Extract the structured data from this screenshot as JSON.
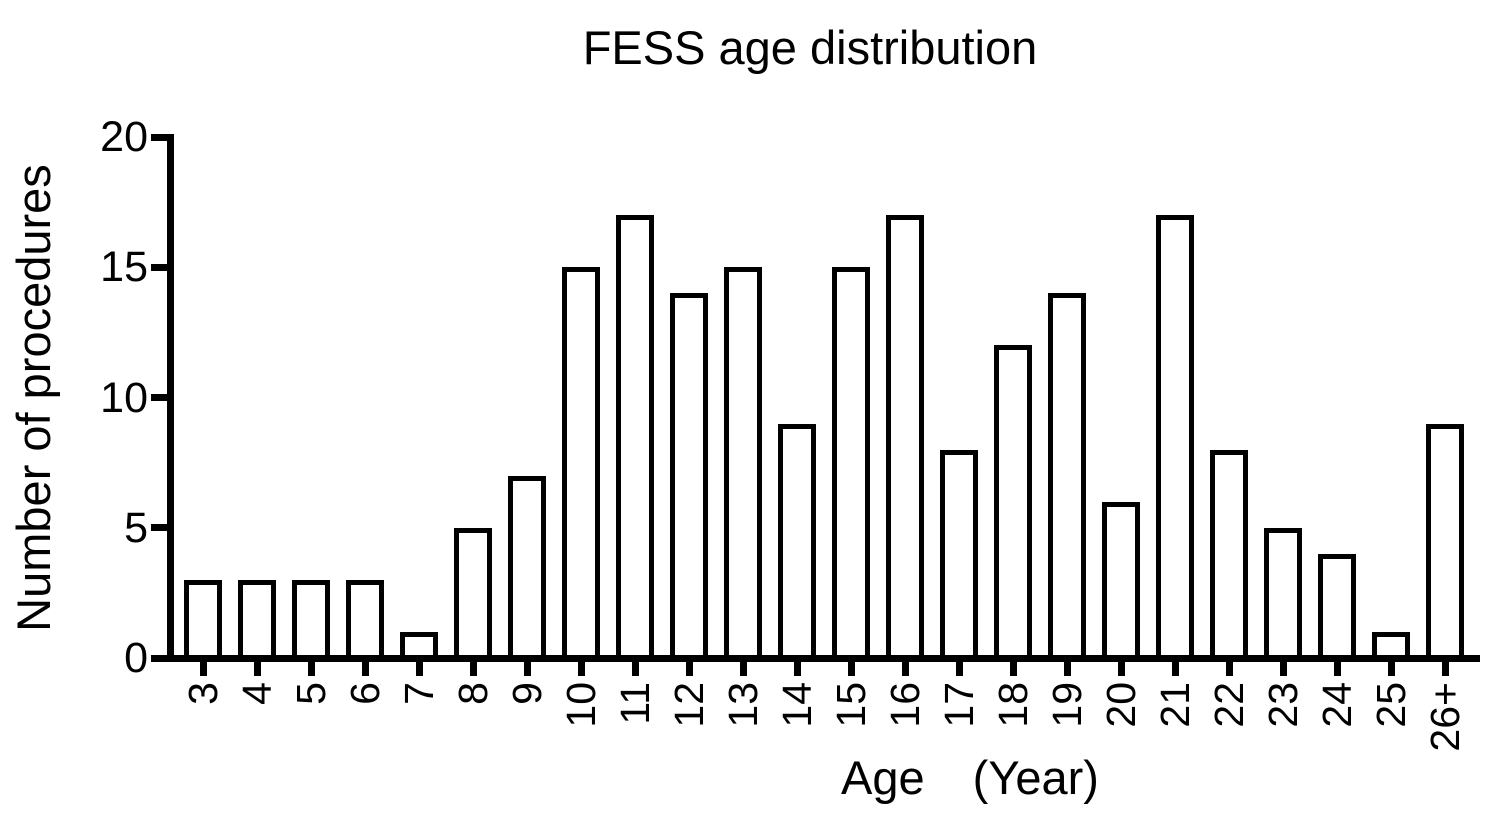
{
  "chart_data": {
    "type": "bar",
    "title": "FESS age distribution",
    "xlabel_main": "Age",
    "xlabel_unit": "(Year)",
    "ylabel": "Number of procedures",
    "categories": [
      "3",
      "4",
      "5",
      "6",
      "7",
      "8",
      "9",
      "10",
      "11",
      "12",
      "13",
      "14",
      "15",
      "16",
      "17",
      "18",
      "19",
      "20",
      "21",
      "22",
      "23",
      "24",
      "25",
      "26+"
    ],
    "values": [
      3,
      3,
      3,
      3,
      1,
      5,
      7,
      15,
      17,
      14,
      15,
      9,
      15,
      17,
      8,
      12,
      14,
      6,
      17,
      8,
      5,
      4,
      1,
      9
    ],
    "ylim": [
      0,
      20
    ],
    "yticks": [
      0,
      5,
      10,
      15,
      20
    ],
    "grid": "off",
    "legend": "none",
    "bar_fill": "#ffffff",
    "bar_stroke": "#000000",
    "axis_color": "#000000",
    "background": "#ffffff"
  }
}
